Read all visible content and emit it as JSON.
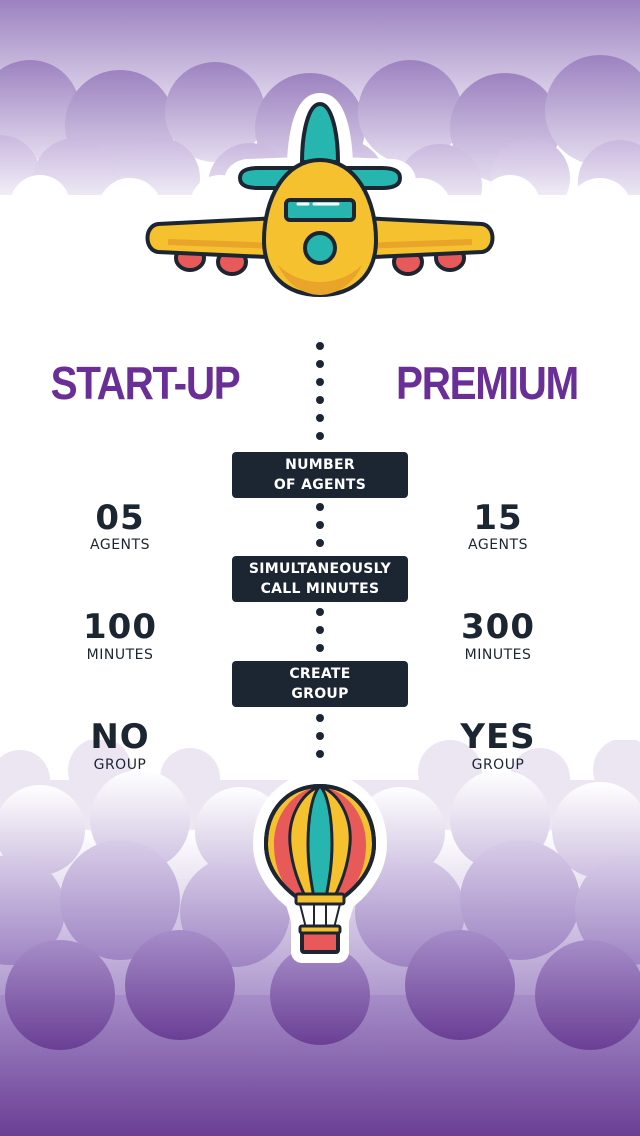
{
  "colors": {
    "plan_title": "#6a2e97",
    "label_box": "#1c2633",
    "text_dark": "#1c2633",
    "sky_purple": "#8c6bb4",
    "sky_deep": "#6a3f95"
  },
  "plans": {
    "left_title": "START-UP",
    "right_title": "PREMIUM"
  },
  "features": [
    {
      "label": "NUMBER\nOF AGENTS",
      "startup": {
        "value": "05",
        "unit": "AGENTS"
      },
      "premium": {
        "value": "15",
        "unit": "AGENTS"
      }
    },
    {
      "label": "SIMULTANEOUSLY\nCALL MINUTES",
      "startup": {
        "value": "100",
        "unit": "MINUTES"
      },
      "premium": {
        "value": "300",
        "unit": "MINUTES"
      }
    },
    {
      "label": "CREATE\nGROUP",
      "startup": {
        "value": "NO",
        "unit": "GROUP"
      },
      "premium": {
        "value": "YES",
        "unit": "GROUP"
      }
    }
  ],
  "icons": {
    "top": "airplane-icon",
    "bottom": "hot-air-balloon-icon"
  }
}
